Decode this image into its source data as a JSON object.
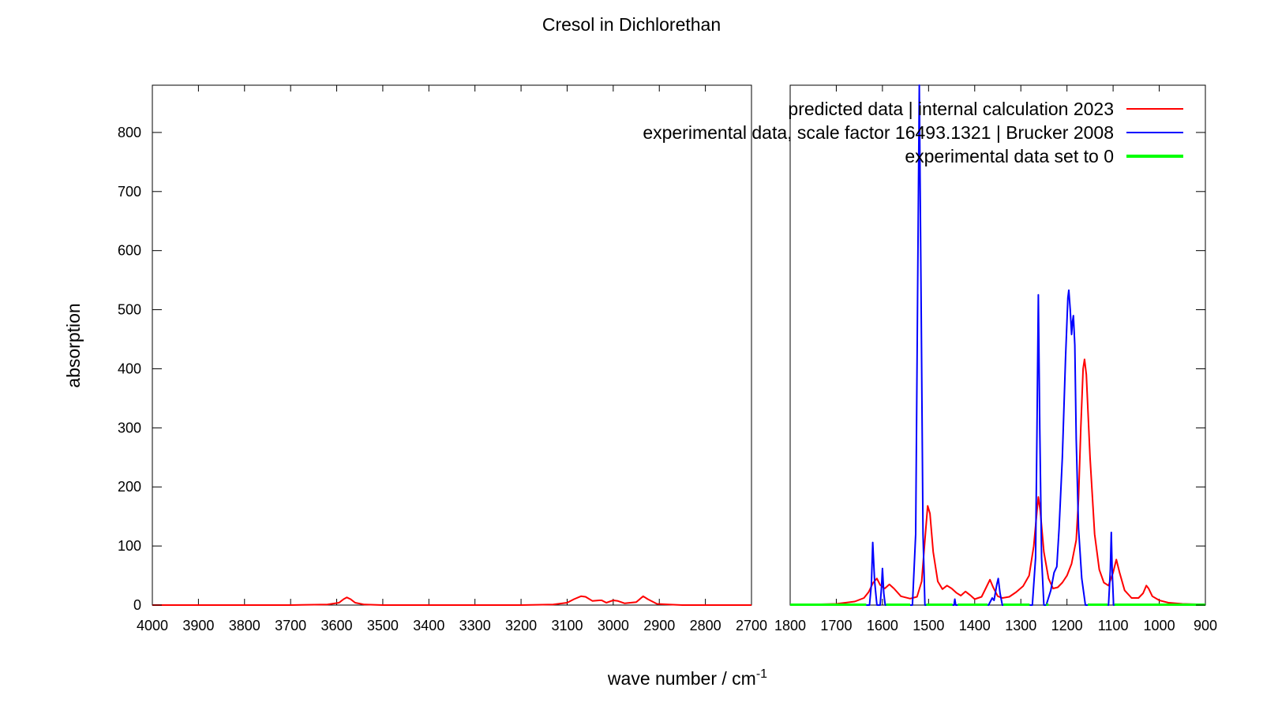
{
  "chart_data": {
    "type": "line",
    "title": "Cresol in Dichlorethan",
    "xlabel": "wave number / cm",
    "xlabel_sup": "-1",
    "ylabel": "absorption",
    "ylim": [
      0,
      880
    ],
    "yticks": [
      "0",
      "100",
      "200",
      "300",
      "400",
      "500",
      "600",
      "700",
      "800"
    ],
    "panels": [
      {
        "xlim": [
          4000,
          2700
        ],
        "xticks": [
          "4000",
          "3900",
          "3800",
          "3700",
          "3600",
          "3500",
          "3400",
          "3300",
          "3200",
          "3100",
          "3000",
          "2900",
          "2800",
          "2700"
        ]
      },
      {
        "xlim": [
          1800,
          900
        ],
        "xticks": [
          "1800",
          "1700",
          "1600",
          "1500",
          "1400",
          "1300",
          "1200",
          "1100",
          "1000",
          "900"
        ]
      }
    ],
    "grid": false,
    "legend_position": "top-right",
    "series": [
      {
        "name": "predicted data | internal calculation 2023",
        "color": "#ff0000",
        "points": [
          [
            4000,
            0
          ],
          [
            3700,
            0
          ],
          [
            3620,
            1
          ],
          [
            3595,
            4
          ],
          [
            3585,
            10
          ],
          [
            3578,
            13
          ],
          [
            3570,
            10
          ],
          [
            3560,
            4
          ],
          [
            3540,
            1
          ],
          [
            3500,
            0
          ],
          [
            3200,
            0
          ],
          [
            3130,
            1
          ],
          [
            3100,
            4
          ],
          [
            3085,
            10
          ],
          [
            3070,
            15
          ],
          [
            3060,
            14
          ],
          [
            3045,
            7
          ],
          [
            3030,
            8
          ],
          [
            3025,
            8
          ],
          [
            3015,
            4
          ],
          [
            3000,
            8
          ],
          [
            2990,
            7
          ],
          [
            2975,
            3
          ],
          [
            2950,
            5
          ],
          [
            2935,
            15
          ],
          [
            2925,
            10
          ],
          [
            2905,
            2
          ],
          [
            2880,
            1
          ],
          [
            2850,
            0
          ],
          [
            2700,
            0
          ],
          [
            1800,
            0
          ],
          [
            1700,
            2
          ],
          [
            1660,
            6
          ],
          [
            1640,
            12
          ],
          [
            1630,
            22
          ],
          [
            1620,
            38
          ],
          [
            1612,
            45
          ],
          [
            1605,
            34
          ],
          [
            1595,
            28
          ],
          [
            1585,
            35
          ],
          [
            1575,
            28
          ],
          [
            1560,
            15
          ],
          [
            1540,
            11
          ],
          [
            1525,
            14
          ],
          [
            1515,
            40
          ],
          [
            1508,
            110
          ],
          [
            1502,
            168
          ],
          [
            1497,
            155
          ],
          [
            1490,
            90
          ],
          [
            1480,
            40
          ],
          [
            1470,
            27
          ],
          [
            1460,
            33
          ],
          [
            1450,
            28
          ],
          [
            1440,
            21
          ],
          [
            1430,
            16
          ],
          [
            1420,
            23
          ],
          [
            1410,
            17
          ],
          [
            1400,
            10
          ],
          [
            1385,
            14
          ],
          [
            1375,
            30
          ],
          [
            1367,
            43
          ],
          [
            1360,
            30
          ],
          [
            1350,
            15
          ],
          [
            1340,
            12
          ],
          [
            1325,
            14
          ],
          [
            1310,
            22
          ],
          [
            1295,
            32
          ],
          [
            1282,
            50
          ],
          [
            1272,
            100
          ],
          [
            1265,
            160
          ],
          [
            1262,
            183
          ],
          [
            1258,
            160
          ],
          [
            1250,
            90
          ],
          [
            1240,
            45
          ],
          [
            1230,
            28
          ],
          [
            1220,
            30
          ],
          [
            1210,
            38
          ],
          [
            1200,
            50
          ],
          [
            1190,
            70
          ],
          [
            1180,
            110
          ],
          [
            1175,
            180
          ],
          [
            1170,
            300
          ],
          [
            1165,
            400
          ],
          [
            1162,
            416
          ],
          [
            1158,
            390
          ],
          [
            1150,
            250
          ],
          [
            1140,
            120
          ],
          [
            1130,
            60
          ],
          [
            1120,
            38
          ],
          [
            1110,
            33
          ],
          [
            1100,
            55
          ],
          [
            1093,
            77
          ],
          [
            1086,
            55
          ],
          [
            1075,
            25
          ],
          [
            1060,
            12
          ],
          [
            1045,
            12
          ],
          [
            1035,
            20
          ],
          [
            1028,
            33
          ],
          [
            1023,
            28
          ],
          [
            1015,
            15
          ],
          [
            1000,
            8
          ],
          [
            980,
            4
          ],
          [
            950,
            2
          ],
          [
            900,
            1
          ]
        ]
      },
      {
        "name": "experimental data, scale factor 16493.1321 | Brucker 2008",
        "color": "#0000ff",
        "points": [
          [
            1650,
            0
          ],
          [
            1628,
            0
          ],
          [
            1624,
            35
          ],
          [
            1621,
            106
          ],
          [
            1617,
            40
          ],
          [
            1612,
            0
          ],
          [
            1605,
            0
          ],
          [
            1602,
            30
          ],
          [
            1600,
            62
          ],
          [
            1597,
            20
          ],
          [
            1594,
            0
          ],
          [
            1535,
            0
          ],
          [
            1528,
            120
          ],
          [
            1524,
            500
          ],
          [
            1520,
            880
          ],
          [
            1516,
            500
          ],
          [
            1512,
            120
          ],
          [
            1508,
            0
          ],
          [
            1445,
            0
          ],
          [
            1443,
            10
          ],
          [
            1441,
            0
          ],
          [
            1370,
            0
          ],
          [
            1362,
            12
          ],
          [
            1358,
            8
          ],
          [
            1352,
            35
          ],
          [
            1349,
            45
          ],
          [
            1345,
            20
          ],
          [
            1340,
            0
          ],
          [
            1275,
            0
          ],
          [
            1268,
            80
          ],
          [
            1265,
            300
          ],
          [
            1262,
            525
          ],
          [
            1259,
            300
          ],
          [
            1255,
            80
          ],
          [
            1250,
            0
          ],
          [
            1245,
            0
          ],
          [
            1235,
            25
          ],
          [
            1228,
            55
          ],
          [
            1222,
            65
          ],
          [
            1217,
            130
          ],
          [
            1210,
            250
          ],
          [
            1203,
            420
          ],
          [
            1198,
            520
          ],
          [
            1196,
            533
          ],
          [
            1193,
            500
          ],
          [
            1190,
            458
          ],
          [
            1188,
            480
          ],
          [
            1186,
            490
          ],
          [
            1183,
            440
          ],
          [
            1180,
            280
          ],
          [
            1175,
            130
          ],
          [
            1168,
            45
          ],
          [
            1160,
            0
          ],
          [
            1110,
            0
          ],
          [
            1106,
            60
          ],
          [
            1104,
            123
          ],
          [
            1102,
            60
          ],
          [
            1099,
            0
          ],
          [
            950,
            0
          ]
        ]
      },
      {
        "name": "experimental data set to 0",
        "color": "#00ff00",
        "segments": [
          [
            1800,
            1635
          ],
          [
            1592,
            1540
          ],
          [
            1505,
            1448
          ],
          [
            1437,
            1372
          ],
          [
            1338,
            1281
          ],
          [
            1245,
            1240
          ],
          [
            1155,
            1112
          ],
          [
            1097,
            900
          ]
        ]
      }
    ]
  }
}
